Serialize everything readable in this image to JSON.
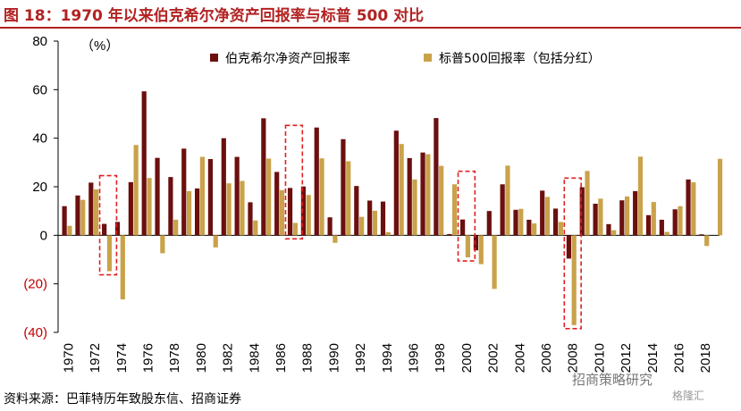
{
  "header": {
    "title": "图 18：1970 年以来伯克希尔净资产回报率与标普 500 对比"
  },
  "footer": {
    "source": "资料来源：巴菲特历年致股东信、招商证券"
  },
  "watermark": {
    "text": "招商策略研究",
    "brand": "格隆汇"
  },
  "colors": {
    "series1": "#6b0f0f",
    "series2": "#c9a24a",
    "highlight": "#e02020",
    "negative_tick": "#c00000"
  },
  "chart_data": {
    "type": "bar",
    "ylabel_unit": "（%）",
    "ylim": [
      -40,
      80
    ],
    "yticks": [
      80,
      60,
      40,
      20,
      0,
      -20,
      -40
    ],
    "ytick_labels": [
      "80",
      "60",
      "40",
      "20",
      "0",
      "(20)",
      "(40)"
    ],
    "categories": [
      1970,
      1971,
      1972,
      1973,
      1974,
      1975,
      1976,
      1977,
      1978,
      1979,
      1980,
      1981,
      1982,
      1983,
      1984,
      1985,
      1986,
      1987,
      1988,
      1989,
      1990,
      1991,
      1992,
      1993,
      1994,
      1995,
      1996,
      1997,
      1998,
      1999,
      2000,
      2001,
      2002,
      2003,
      2004,
      2005,
      2006,
      2007,
      2008,
      2009,
      2010,
      2011,
      2012,
      2013,
      2014,
      2015,
      2016,
      2017,
      2018
    ],
    "xtick_labels": [
      "1970",
      "1972",
      "1974",
      "1976",
      "1978",
      "1980",
      "1982",
      "1984",
      "1986",
      "1988",
      "1990",
      "1992",
      "1994",
      "1996",
      "1998",
      "2000",
      "2002",
      "2004",
      "2006",
      "2008",
      "2010",
      "2012",
      "2014",
      "2016",
      "2018"
    ],
    "series": [
      {
        "name": "伯克希尔净资产回报率",
        "values": [
          12.0,
          16.4,
          21.7,
          4.7,
          5.5,
          21.9,
          59.3,
          31.9,
          24.0,
          35.7,
          19.3,
          31.4,
          40.0,
          32.3,
          13.6,
          48.2,
          26.1,
          19.5,
          20.1,
          44.4,
          7.4,
          39.6,
          20.3,
          14.3,
          13.9,
          43.1,
          31.8,
          34.1,
          48.3,
          0.5,
          6.5,
          -6.2,
          10.0,
          21.0,
          10.5,
          6.4,
          18.4,
          11.0,
          -9.6,
          19.8,
          13.0,
          4.6,
          14.4,
          18.2,
          8.3,
          6.4,
          10.7,
          23.0,
          0.4
        ]
      },
      {
        "name": "标普500回报率（包括分红）",
        "values": [
          3.9,
          14.6,
          18.9,
          -14.8,
          -26.4,
          37.2,
          23.6,
          -7.4,
          6.4,
          18.2,
          32.3,
          -5.0,
          21.4,
          22.4,
          6.1,
          31.6,
          18.6,
          5.1,
          16.6,
          31.7,
          -3.1,
          30.5,
          7.6,
          10.1,
          1.3,
          37.6,
          23.0,
          33.4,
          28.6,
          21.0,
          -9.1,
          -11.9,
          -22.1,
          28.7,
          10.9,
          4.9,
          15.8,
          5.5,
          -37.0,
          26.5,
          15.1,
          2.1,
          16.0,
          32.4,
          13.7,
          1.4,
          12.0,
          21.8,
          -4.4
        ]
      }
    ],
    "extra_series2": {
      "label": "2019",
      "value": 31.5
    },
    "highlighted_years": [
      1973,
      1987,
      2000,
      2008
    ]
  }
}
